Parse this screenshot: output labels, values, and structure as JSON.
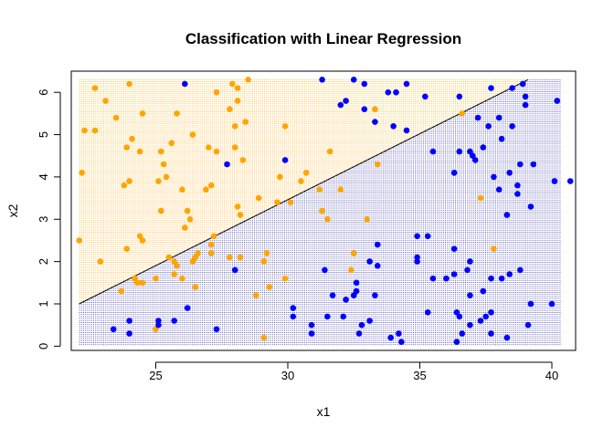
{
  "chart_data": {
    "type": "scatter",
    "title": "Classification with Linear Regression",
    "xlabel": "x1",
    "ylabel": "x2",
    "xlim": [
      21.8,
      40.9
    ],
    "ylim": [
      -0.1,
      6.5
    ],
    "x_ticks": [
      25,
      30,
      35,
      40
    ],
    "y_ticks": [
      0,
      1,
      2,
      3,
      4,
      5,
      6
    ],
    "grid": false,
    "legend": "none",
    "colors": {
      "orange": "#FFA500",
      "blue": "#0000FF",
      "line": "#000000"
    },
    "decision_boundary": {
      "x": [
        22.1,
        39.1
      ],
      "y": [
        1.0,
        6.3
      ]
    },
    "series": [
      {
        "color": "orange",
        "points": [
          [
            22.1,
            2.5
          ],
          [
            22.2,
            4.1
          ],
          [
            22.3,
            5.1
          ],
          [
            22.7,
            6.1
          ],
          [
            22.7,
            5.1
          ],
          [
            22.9,
            2.0
          ],
          [
            23.1,
            5.8
          ],
          [
            23.5,
            5.4
          ],
          [
            23.7,
            1.3
          ],
          [
            23.8,
            3.8
          ],
          [
            23.9,
            2.3
          ],
          [
            23.9,
            4.7
          ],
          [
            24.0,
            6.2
          ],
          [
            24.0,
            3.9
          ],
          [
            24.1,
            4.9
          ],
          [
            24.2,
            1.6
          ],
          [
            24.3,
            1.5
          ],
          [
            24.4,
            4.6
          ],
          [
            24.4,
            2.6
          ],
          [
            24.5,
            2.5
          ],
          [
            24.5,
            1.5
          ],
          [
            24.5,
            5.5
          ],
          [
            25.0,
            0.4
          ],
          [
            25.0,
            1.6
          ],
          [
            25.1,
            3.9
          ],
          [
            25.2,
            4.6
          ],
          [
            25.2,
            3.2
          ],
          [
            25.3,
            4.3
          ],
          [
            25.4,
            4.0
          ],
          [
            25.5,
            2.1
          ],
          [
            25.6,
            4.8
          ],
          [
            25.7,
            2.0
          ],
          [
            25.7,
            1.7
          ],
          [
            25.8,
            5.5
          ],
          [
            25.8,
            1.9
          ],
          [
            26.0,
            3.7
          ],
          [
            26.0,
            1.6
          ],
          [
            26.1,
            2.8
          ],
          [
            26.2,
            3.2
          ],
          [
            26.3,
            3.0
          ],
          [
            26.4,
            5.0
          ],
          [
            26.4,
            2.0
          ],
          [
            26.5,
            1.4
          ],
          [
            26.5,
            2.1
          ],
          [
            26.6,
            2.2
          ],
          [
            26.9,
            3.7
          ],
          [
            27.0,
            4.7
          ],
          [
            27.1,
            3.8
          ],
          [
            27.1,
            2.4
          ],
          [
            27.1,
            2.2
          ],
          [
            27.2,
            2.6
          ],
          [
            27.3,
            6.0
          ],
          [
            27.3,
            4.6
          ],
          [
            27.8,
            2.1
          ],
          [
            27.8,
            5.6
          ],
          [
            27.9,
            6.2
          ],
          [
            28.0,
            4.7
          ],
          [
            28.0,
            5.2
          ],
          [
            28.1,
            6.1
          ],
          [
            28.1,
            5.8
          ],
          [
            28.1,
            3.3
          ],
          [
            28.2,
            3.1
          ],
          [
            28.2,
            2.1
          ],
          [
            28.3,
            4.4
          ],
          [
            28.4,
            5.3
          ],
          [
            28.5,
            6.3
          ],
          [
            28.8,
            1.2
          ],
          [
            28.9,
            3.5
          ],
          [
            29.1,
            0.2
          ],
          [
            29.1,
            2.0
          ],
          [
            29.2,
            2.2
          ],
          [
            29.3,
            1.4
          ],
          [
            29.6,
            3.4
          ],
          [
            29.7,
            4.0
          ],
          [
            29.9,
            1.6
          ],
          [
            29.9,
            5.2
          ],
          [
            30.1,
            3.4
          ],
          [
            30.5,
            3.9
          ],
          [
            30.7,
            4.1
          ],
          [
            31.2,
            3.7
          ],
          [
            31.3,
            3.2
          ],
          [
            31.5,
            3.0
          ],
          [
            31.6,
            4.6
          ],
          [
            32.0,
            3.7
          ],
          [
            32.4,
            1.8
          ],
          [
            32.5,
            2.2
          ],
          [
            33.0,
            3.0
          ],
          [
            33.3,
            5.6
          ],
          [
            33.4,
            4.3
          ],
          [
            36.6,
            5.5
          ],
          [
            37.3,
            3.5
          ],
          [
            37.8,
            2.3
          ],
          [
            38.9,
            6.2
          ]
        ]
      },
      {
        "color": "blue",
        "points": [
          [
            23.4,
            0.4
          ],
          [
            24.0,
            0.3
          ],
          [
            24.0,
            0.6
          ],
          [
            25.1,
            0.6
          ],
          [
            25.1,
            0.5
          ],
          [
            25.7,
            0.6
          ],
          [
            26.1,
            6.2
          ],
          [
            26.2,
            0.9
          ],
          [
            27.3,
            0.4
          ],
          [
            27.7,
            4.3
          ],
          [
            28.0,
            1.8
          ],
          [
            29.9,
            4.4
          ],
          [
            30.2,
            0.7
          ],
          [
            30.2,
            0.9
          ],
          [
            30.9,
            0.3
          ],
          [
            30.9,
            0.5
          ],
          [
            31.3,
            6.3
          ],
          [
            31.4,
            1.8
          ],
          [
            31.5,
            0.7
          ],
          [
            31.7,
            1.2
          ],
          [
            32.0,
            5.7
          ],
          [
            32.1,
            0.7
          ],
          [
            32.2,
            1.1
          ],
          [
            32.2,
            5.8
          ],
          [
            32.5,
            1.2
          ],
          [
            32.5,
            6.3
          ],
          [
            32.6,
            1.3
          ],
          [
            32.6,
            1.5
          ],
          [
            32.7,
            0.3
          ],
          [
            32.8,
            0.5
          ],
          [
            32.9,
            5.6
          ],
          [
            32.9,
            6.2
          ],
          [
            33.1,
            0.6
          ],
          [
            33.1,
            2.0
          ],
          [
            33.3,
            5.3
          ],
          [
            33.3,
            1.2
          ],
          [
            33.4,
            2.4
          ],
          [
            33.4,
            1.9
          ],
          [
            33.8,
            6.0
          ],
          [
            33.9,
            0.2
          ],
          [
            34.0,
            5.2
          ],
          [
            34.1,
            6.0
          ],
          [
            34.2,
            0.3
          ],
          [
            34.3,
            0.1
          ],
          [
            34.5,
            5.1
          ],
          [
            34.5,
            6.2
          ],
          [
            34.9,
            2.6
          ],
          [
            34.9,
            2.1
          ],
          [
            34.9,
            2.0
          ],
          [
            35.2,
            5.9
          ],
          [
            35.3,
            0.8
          ],
          [
            35.3,
            2.6
          ],
          [
            35.5,
            4.6
          ],
          [
            35.5,
            1.6
          ],
          [
            36.0,
            1.6
          ],
          [
            36.3,
            1.7
          ],
          [
            36.3,
            4.1
          ],
          [
            36.3,
            2.3
          ],
          [
            36.4,
            0.1
          ],
          [
            36.4,
            0.8
          ],
          [
            36.5,
            0.7
          ],
          [
            36.5,
            4.6
          ],
          [
            36.5,
            5.9
          ],
          [
            36.6,
            0.3
          ],
          [
            36.8,
            1.8
          ],
          [
            36.9,
            0.5
          ],
          [
            36.9,
            1.2
          ],
          [
            36.9,
            2.0
          ],
          [
            36.9,
            4.6
          ],
          [
            37.0,
            4.5
          ],
          [
            37.1,
            4.4
          ],
          [
            37.2,
            5.4
          ],
          [
            37.3,
            0.6
          ],
          [
            37.4,
            4.7
          ],
          [
            37.4,
            1.3
          ],
          [
            37.5,
            0.7
          ],
          [
            37.6,
            5.2
          ],
          [
            37.7,
            6.1
          ],
          [
            37.7,
            0.3
          ],
          [
            37.7,
            0.8
          ],
          [
            37.7,
            1.6
          ],
          [
            37.8,
            4.0
          ],
          [
            38.0,
            3.7
          ],
          [
            38.0,
            5.4
          ],
          [
            38.1,
            4.9
          ],
          [
            38.1,
            1.6
          ],
          [
            38.3,
            3.1
          ],
          [
            38.3,
            0.2
          ],
          [
            38.4,
            1.7
          ],
          [
            38.4,
            4.1
          ],
          [
            38.5,
            5.2
          ],
          [
            38.5,
            6.1
          ],
          [
            38.7,
            3.8
          ],
          [
            38.7,
            3.6
          ],
          [
            38.8,
            4.3
          ],
          [
            38.8,
            1.8
          ],
          [
            38.9,
            6.2
          ],
          [
            39.0,
            5.7
          ],
          [
            39.0,
            5.9
          ],
          [
            39.1,
            0.5
          ],
          [
            39.2,
            1.0
          ],
          [
            39.2,
            3.3
          ],
          [
            39.3,
            4.3
          ],
          [
            40.0,
            1.0
          ],
          [
            40.1,
            3.9
          ],
          [
            40.2,
            5.8
          ],
          [
            40.7,
            3.9
          ]
        ]
      }
    ]
  }
}
